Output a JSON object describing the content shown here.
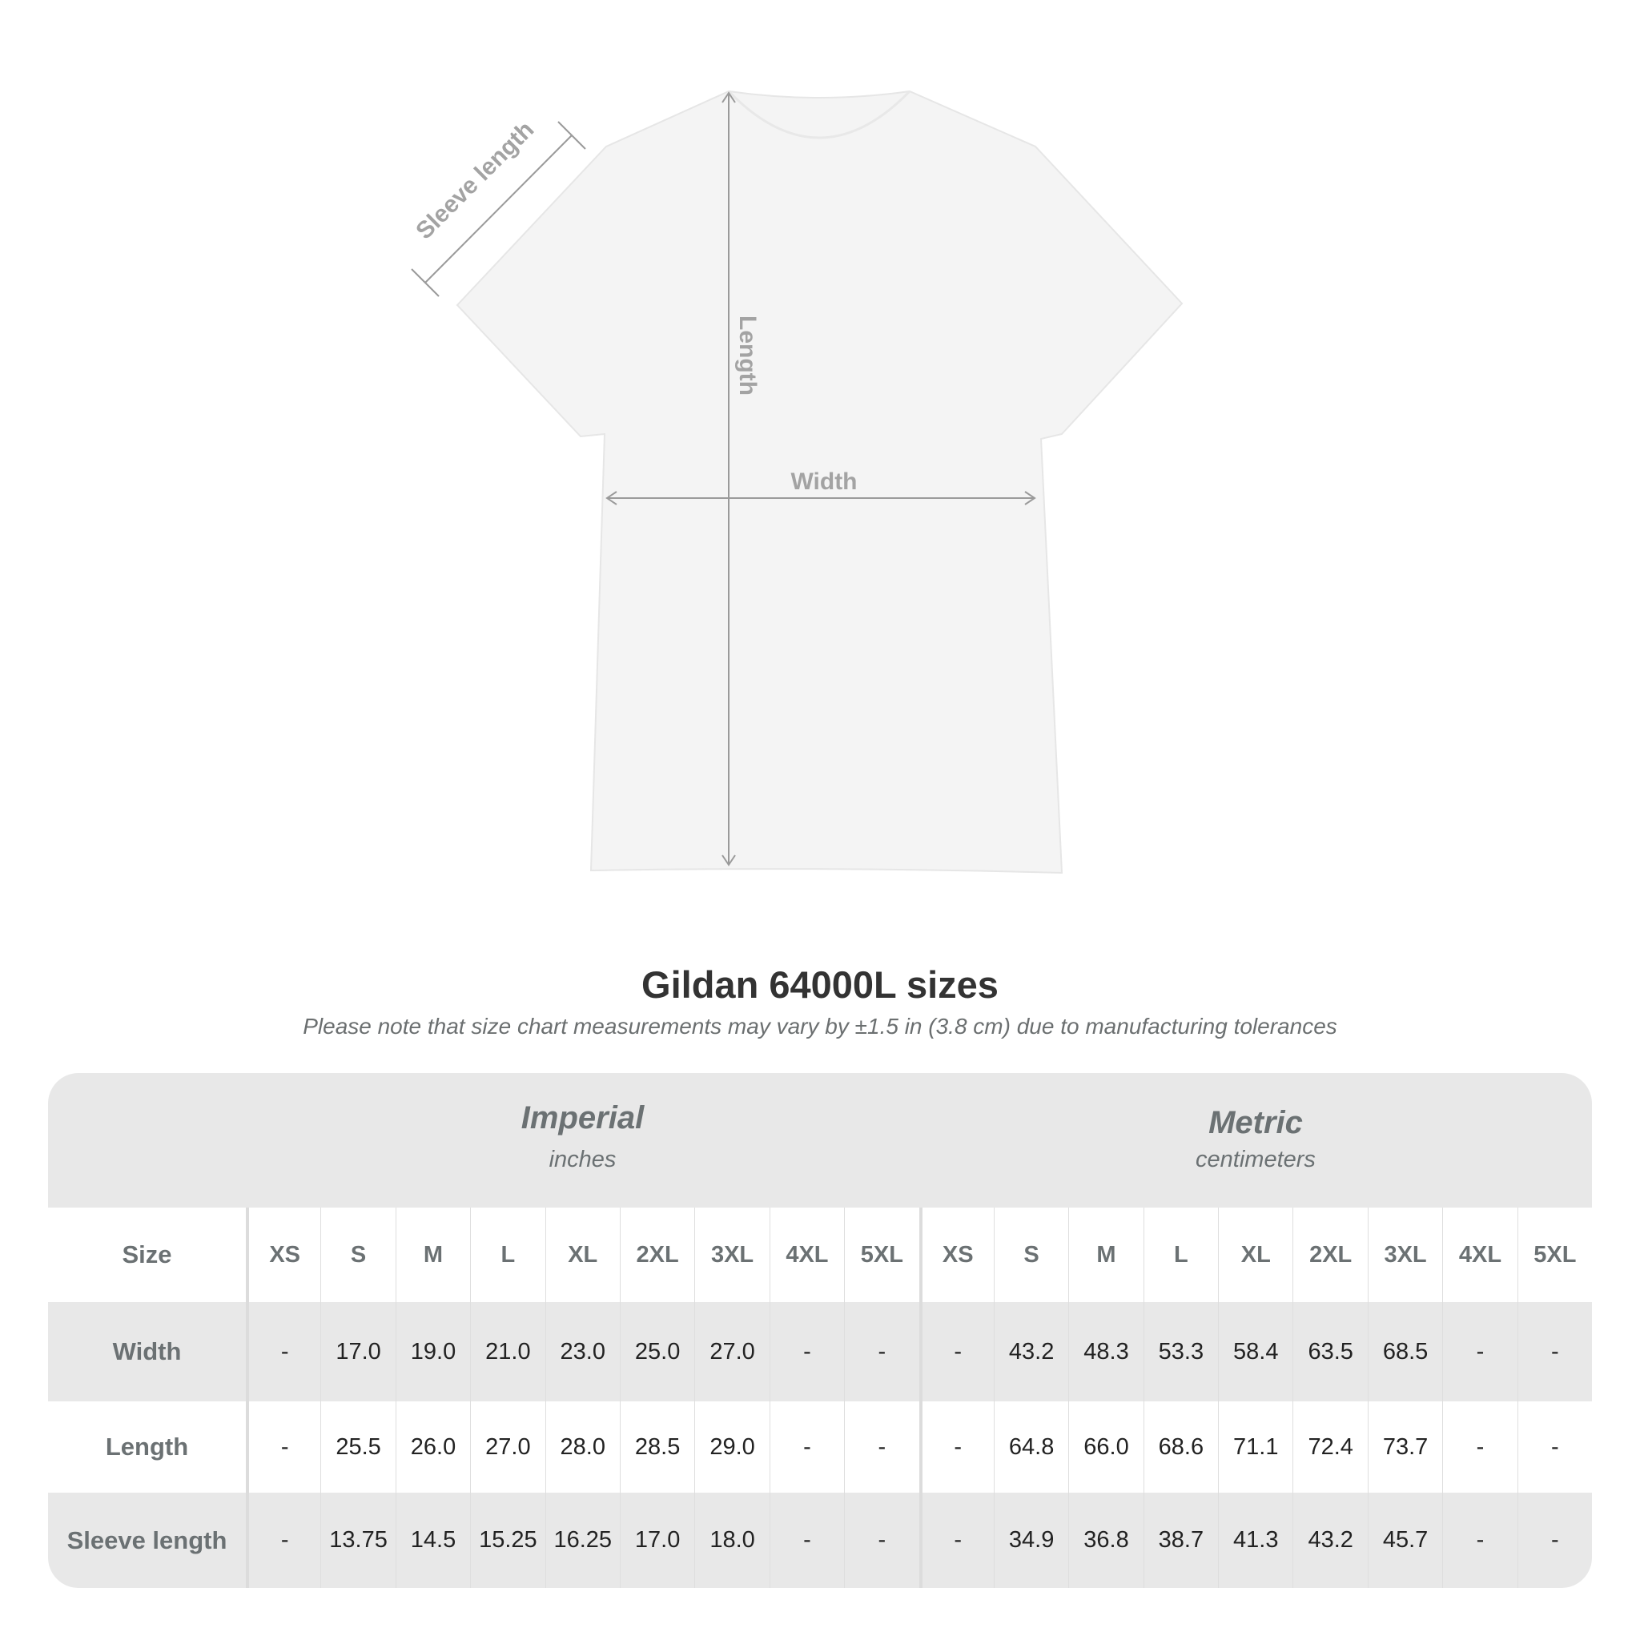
{
  "diagram": {
    "labels": {
      "sleeve": "Sleeve length",
      "length": "Length",
      "width": "Width"
    },
    "shirt_color": "#f4f4f4",
    "arrow_color": "#9a9a9a"
  },
  "title": "Gildan 64000L sizes",
  "subtitle": "Please note that size chart measurements may vary by ±1.5 in (3.8 cm) due to manufacturing tolerances",
  "table": {
    "imperial": {
      "title": "Imperial",
      "unit": "inches"
    },
    "metric": {
      "title": "Metric",
      "unit": "centimeters"
    },
    "size_label": "Size",
    "sizes": [
      "XS",
      "S",
      "M",
      "L",
      "XL",
      "2XL",
      "3XL",
      "4XL",
      "5XL"
    ],
    "rows": [
      {
        "label": "Width",
        "imperial": [
          "-",
          "17.0",
          "19.0",
          "21.0",
          "23.0",
          "25.0",
          "27.0",
          "-",
          "-"
        ],
        "metric": [
          "-",
          "43.2",
          "48.3",
          "53.3",
          "58.4",
          "63.5",
          "68.5",
          "-",
          "-"
        ]
      },
      {
        "label": "Length",
        "imperial": [
          "-",
          "25.5",
          "26.0",
          "27.0",
          "28.0",
          "28.5",
          "29.0",
          "-",
          "-"
        ],
        "metric": [
          "-",
          "64.8",
          "66.0",
          "68.6",
          "71.1",
          "72.4",
          "73.7",
          "-",
          "-"
        ]
      },
      {
        "label": "Sleeve length",
        "imperial": [
          "-",
          "13.75",
          "14.5",
          "15.25",
          "16.25",
          "17.0",
          "18.0",
          "-",
          "-"
        ],
        "metric": [
          "-",
          "34.9",
          "36.8",
          "38.7",
          "41.3",
          "43.2",
          "45.7",
          "-",
          "-"
        ]
      }
    ]
  }
}
